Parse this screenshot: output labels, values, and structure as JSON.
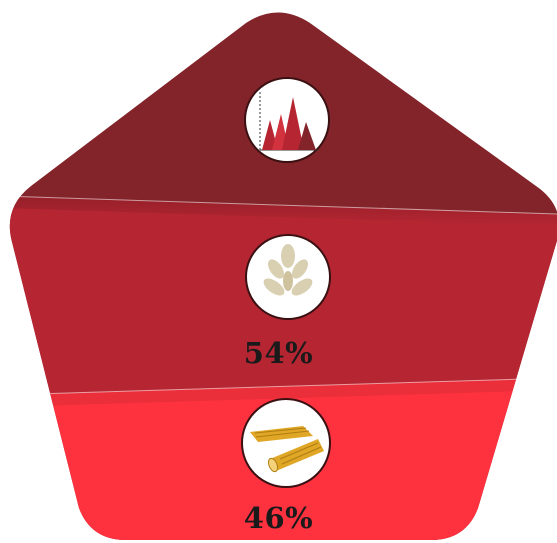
{
  "segments": [
    {
      "id": "top",
      "color": "#82242a",
      "icon": "histogram-icon",
      "label": ""
    },
    {
      "id": "middle",
      "color": "#b52632",
      "icon": "grain-icon",
      "label": "54%"
    },
    {
      "id": "bottom",
      "color": "#fe323f",
      "icon": "pasta-icon",
      "label": "46%"
    }
  ],
  "colors": {
    "text": "#1a1a1a",
    "icon_circle": "#ffffff",
    "grain": "#d9cfb1",
    "pasta": "#e0a626"
  }
}
